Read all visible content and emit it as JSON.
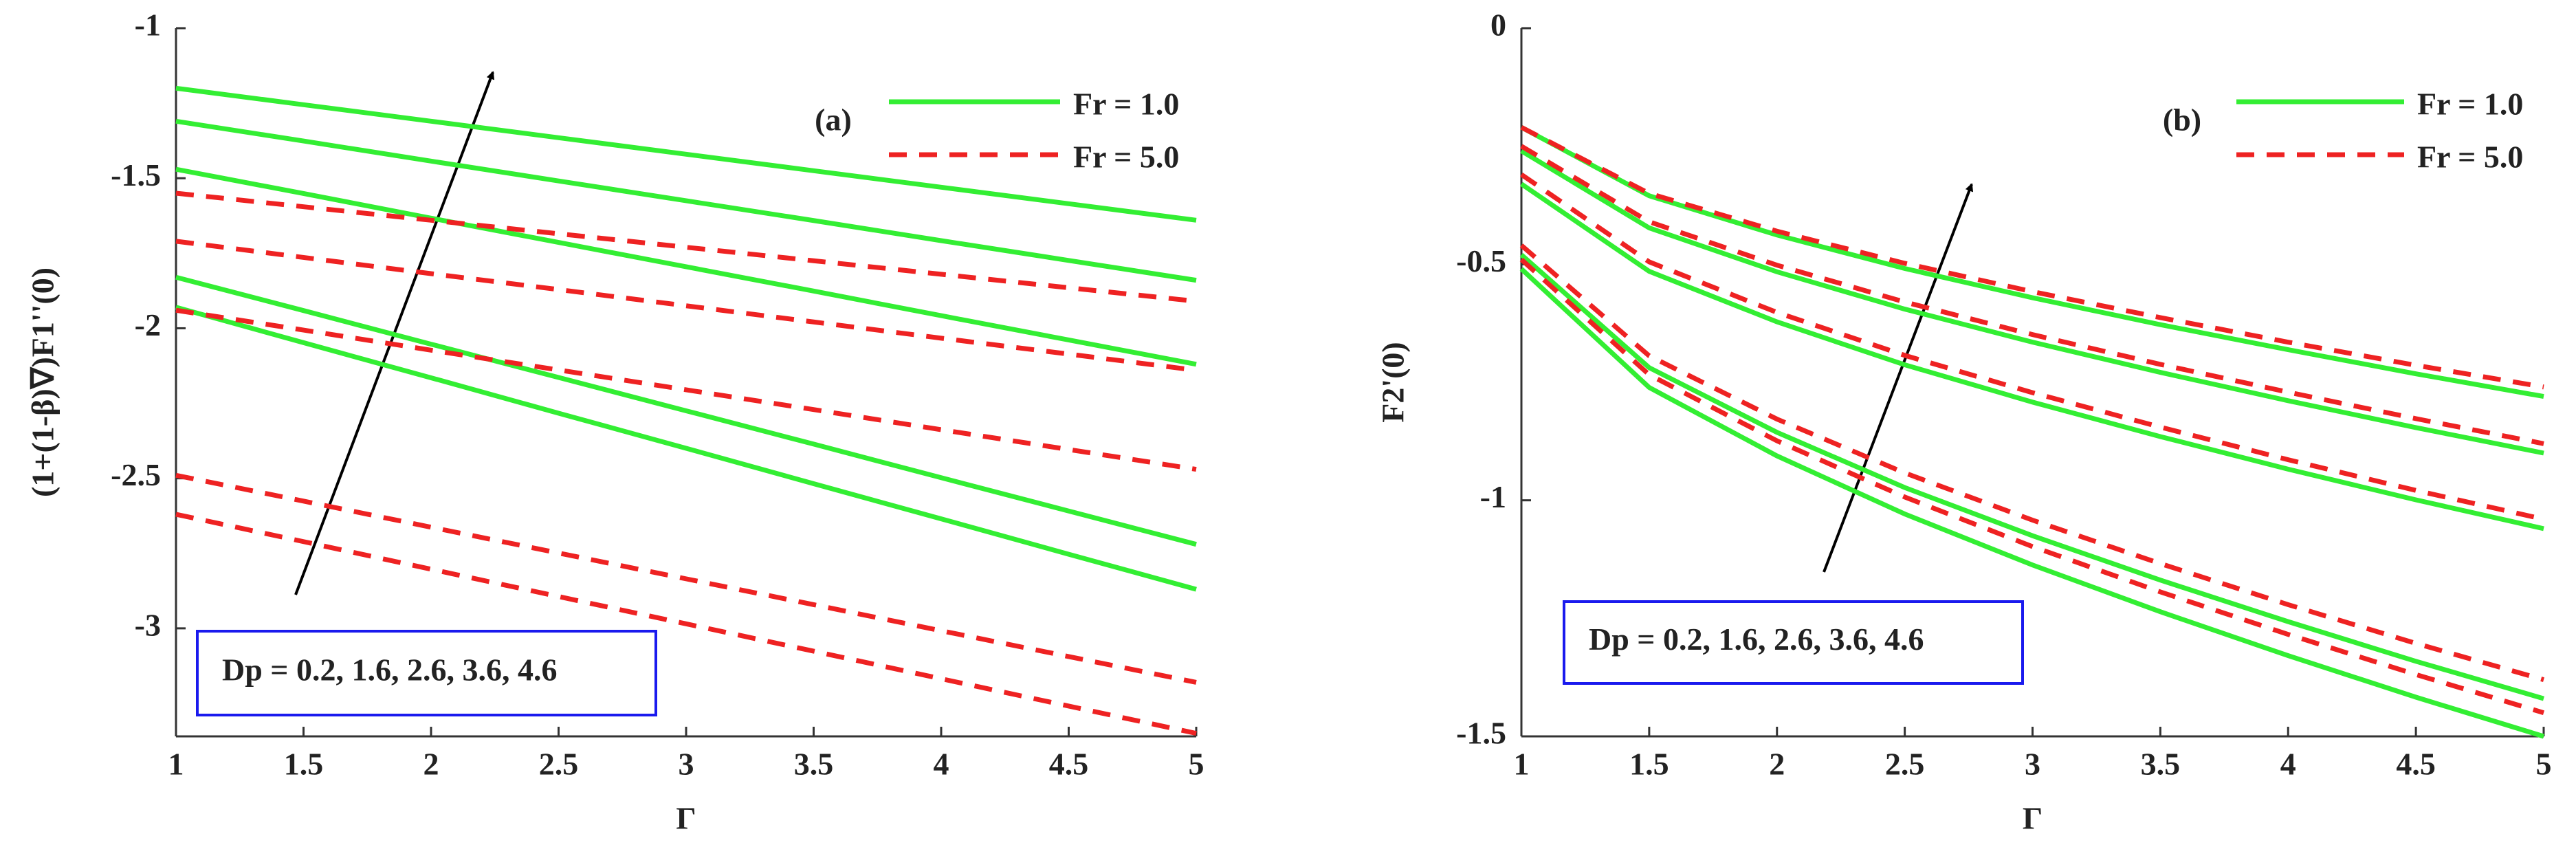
{
  "chart_data": [
    {
      "type": "line",
      "panel": "(a)",
      "note": "Dp = 0.2, 1.6, 2.6, 3.6, 4.6",
      "xlabel": "Γ",
      "ylabel": "(1+(1-β)∇)F1''(0)",
      "x": [
        1,
        1.5,
        2,
        2.5,
        3,
        3.5,
        4,
        4.5,
        5
      ],
      "xlim": [
        1,
        5
      ],
      "xticks": [
        1,
        1.5,
        2,
        2.5,
        3,
        3.5,
        4,
        4.5,
        5
      ],
      "ylim": [
        -3.36,
        -1
      ],
      "yticks": [
        -3,
        -2.5,
        -2,
        -1.5,
        -1
      ],
      "series": [
        {
          "name": "Fr = 1.0",
          "color": "#33ee33",
          "dashed": false,
          "lines": [
            [
              -1.2,
              -1.255,
              -1.31,
              -1.365,
              -1.42,
              -1.475,
              -1.53,
              -1.585,
              -1.64
            ],
            [
              -1.31,
              -1.376,
              -1.443,
              -1.509,
              -1.575,
              -1.641,
              -1.708,
              -1.774,
              -1.84
            ],
            [
              -1.47,
              -1.551,
              -1.633,
              -1.714,
              -1.795,
              -1.876,
              -1.958,
              -2.039,
              -2.12
            ],
            [
              -1.83,
              -1.941,
              -2.053,
              -2.164,
              -2.275,
              -2.386,
              -2.498,
              -2.609,
              -2.72
            ],
            [
              -1.93,
              -2.048,
              -2.165,
              -2.283,
              -2.4,
              -2.518,
              -2.635,
              -2.753,
              -2.87
            ]
          ]
        },
        {
          "name": "Fr = 5.0",
          "color": "#ee2222",
          "dashed": true,
          "lines": [
            [
              -1.55,
              -1.595,
              -1.64,
              -1.685,
              -1.73,
              -1.775,
              -1.82,
              -1.865,
              -1.91
            ],
            [
              -1.71,
              -1.764,
              -1.818,
              -1.871,
              -1.925,
              -1.979,
              -2.033,
              -2.086,
              -2.14
            ],
            [
              -1.94,
              -2.006,
              -2.073,
              -2.139,
              -2.205,
              -2.271,
              -2.338,
              -2.404,
              -2.47
            ],
            [
              -2.49,
              -2.576,
              -2.663,
              -2.749,
              -2.835,
              -2.921,
              -3.008,
              -3.094,
              -3.18
            ],
            [
              -2.62,
              -2.711,
              -2.803,
              -2.894,
              -2.985,
              -3.076,
              -3.168,
              -3.259,
              -3.35
            ]
          ]
        }
      ]
    },
    {
      "type": "line",
      "panel": "(b)",
      "note": "Dp = 0.2, 1.6, 2.6, 3.6, 4.6",
      "xlabel": "Γ",
      "ylabel": "F2'(0)",
      "x": [
        1,
        1.5,
        2,
        2.5,
        3,
        3.5,
        4,
        4.5,
        5
      ],
      "xlim": [
        1,
        5
      ],
      "xticks": [
        1,
        1.5,
        2,
        2.5,
        3,
        3.5,
        4,
        4.5,
        5
      ],
      "ylim": [
        -1.5,
        0
      ],
      "yticks": [
        -1.5,
        -1,
        -0.5,
        0
      ],
      "series": [
        {
          "name": "Fr = 1.0",
          "color": "#33ee33",
          "dashed": false,
          "lines": [
            [
              -0.21,
              -0.355,
              -0.438,
              -0.509,
              -0.571,
              -0.628,
              -0.681,
              -0.732,
              -0.78
            ],
            [
              -0.26,
              -0.423,
              -0.516,
              -0.595,
              -0.665,
              -0.729,
              -0.789,
              -0.846,
              -0.9
            ],
            [
              -0.33,
              -0.515,
              -0.622,
              -0.713,
              -0.792,
              -0.865,
              -0.934,
              -0.999,
              -1.06
            ],
            [
              -0.48,
              -0.719,
              -0.856,
              -0.973,
              -1.075,
              -1.169,
              -1.257,
              -1.341,
              -1.42
            ],
            [
              -0.51,
              -0.761,
              -0.906,
              -1.029,
              -1.137,
              -1.236,
              -1.329,
              -1.417,
              -1.5
            ]
          ]
        },
        {
          "name": "Fr = 5.0",
          "color": "#ee2222",
          "dashed": true,
          "lines": [
            [
              -0.21,
              -0.35,
              -0.43,
              -0.498,
              -0.558,
              -0.613,
              -0.665,
              -0.714,
              -0.76
            ],
            [
              -0.25,
              -0.41,
              -0.502,
              -0.58,
              -0.649,
              -0.712,
              -0.771,
              -0.827,
              -0.88
            ],
            [
              -0.31,
              -0.495,
              -0.602,
              -0.693,
              -0.772,
              -0.845,
              -0.914,
              -0.979,
              -1.04
            ],
            [
              -0.46,
              -0.694,
              -0.828,
              -0.942,
              -1.042,
              -1.134,
              -1.221,
              -1.303,
              -1.38
            ],
            [
              -0.49,
              -0.734,
              -0.874,
              -0.993,
              -1.098,
              -1.194,
              -1.284,
              -1.369,
              -1.45
            ]
          ]
        }
      ]
    }
  ]
}
